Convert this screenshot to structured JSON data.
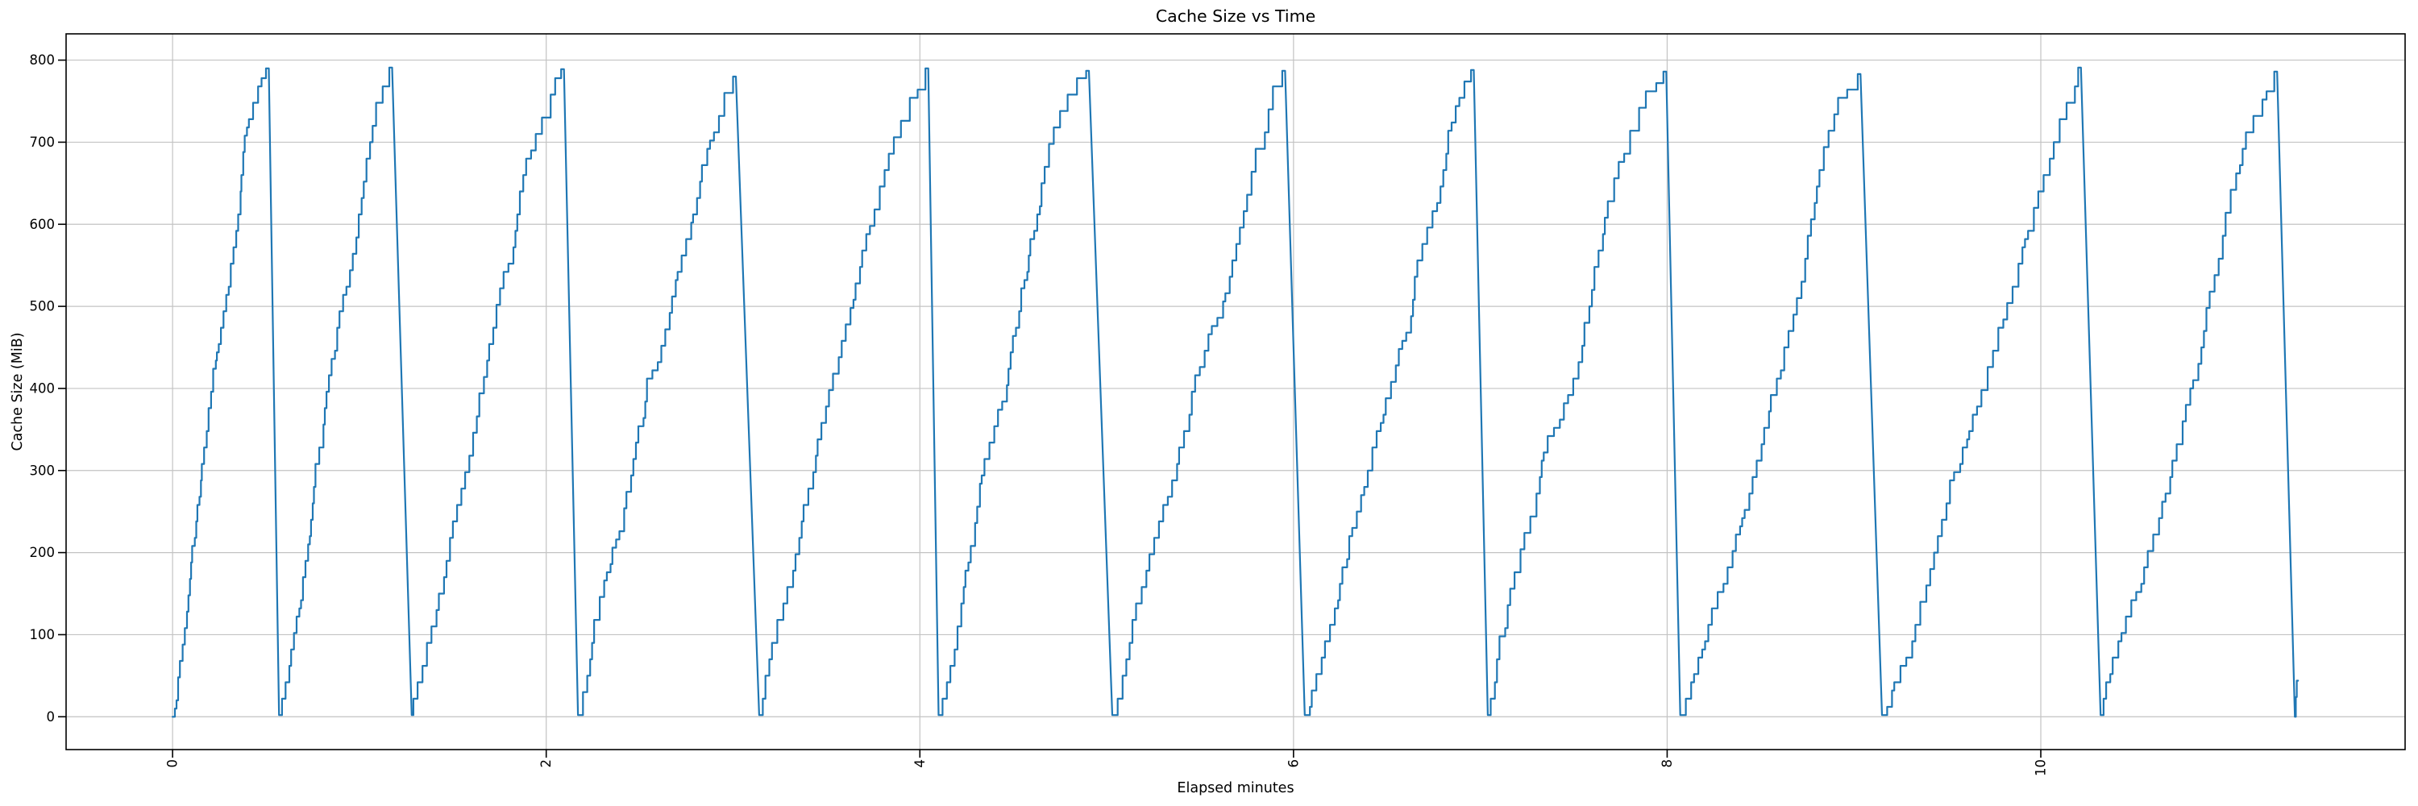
{
  "chart_data": {
    "type": "line",
    "title": "Cache Size vs Time",
    "xlabel": "Elapsed minutes",
    "ylabel": "Cache Size (MiB)",
    "xlim": [
      -0.57,
      11.95
    ],
    "ylim": [
      -40,
      832
    ],
    "x_ticks": [
      0,
      2,
      4,
      6,
      8,
      10
    ],
    "y_ticks": [
      0,
      100,
      200,
      300,
      400,
      500,
      600,
      700,
      800
    ],
    "x_tick_rotation_deg": 90,
    "grid": true,
    "legend": false,
    "line_color": "#1f77b4",
    "grid_color": "#c3c3c3",
    "spine_color": "#000000",
    "background": "#ffffff",
    "series_name": "cache_size_mib",
    "step_mib_typical": 20,
    "cycles": [
      {
        "start_min": 0.0,
        "peak_min": 0.5,
        "end_min": 0.57,
        "peak_mib": 790
      },
      {
        "start_min": 0.57,
        "peak_min": 1.16,
        "end_min": 1.28,
        "peak_mib": 791
      },
      {
        "start_min": 1.28,
        "peak_min": 2.08,
        "end_min": 2.17,
        "peak_mib": 789
      },
      {
        "start_min": 2.17,
        "peak_min": 3.0,
        "end_min": 3.14,
        "peak_mib": 780
      },
      {
        "start_min": 3.14,
        "peak_min": 4.03,
        "end_min": 4.1,
        "peak_mib": 790
      },
      {
        "start_min": 4.1,
        "peak_min": 4.89,
        "end_min": 5.03,
        "peak_mib": 787
      },
      {
        "start_min": 5.03,
        "peak_min": 5.94,
        "end_min": 6.06,
        "peak_mib": 787
      },
      {
        "start_min": 6.06,
        "peak_min": 6.95,
        "end_min": 7.04,
        "peak_mib": 788
      },
      {
        "start_min": 7.04,
        "peak_min": 7.98,
        "end_min": 8.07,
        "peak_mib": 786
      },
      {
        "start_min": 8.07,
        "peak_min": 9.02,
        "end_min": 9.15,
        "peak_mib": 783
      },
      {
        "start_min": 9.15,
        "peak_min": 10.2,
        "end_min": 10.32,
        "peak_mib": 791
      },
      {
        "start_min": 10.32,
        "peak_min": 11.25,
        "end_min": 11.36,
        "peak_mib": 786
      }
    ],
    "tail_points_min_mib": [
      [
        11.36,
        0
      ],
      [
        11.365,
        0
      ],
      [
        11.365,
        24
      ],
      [
        11.37,
        24
      ],
      [
        11.37,
        44
      ],
      [
        11.377,
        44
      ]
    ]
  }
}
